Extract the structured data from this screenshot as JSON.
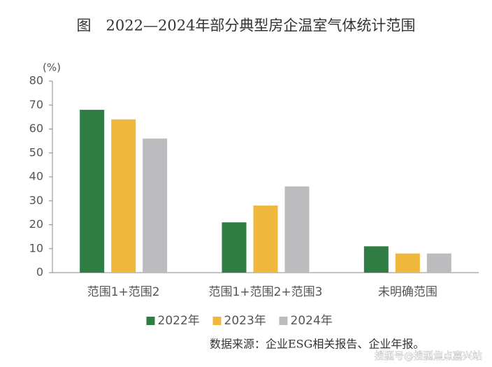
{
  "chart_data": {
    "type": "bar",
    "title": "图　2022—2024年部分典型房企温室气体统计范围",
    "y_unit": "(%)",
    "categories": [
      "范围1+范围2",
      "范围1+范围2+范围3",
      "未明确范围"
    ],
    "series": [
      {
        "name": "2022年",
        "color": "#2f7d43",
        "values": [
          68,
          21,
          11
        ]
      },
      {
        "name": "2023年",
        "color": "#efb83c",
        "values": [
          64,
          28,
          8
        ]
      },
      {
        "name": "2024年",
        "color": "#bcbcbf",
        "values": [
          56,
          36,
          8
        ]
      }
    ],
    "ylim": [
      0,
      80
    ],
    "yticks": [
      0,
      10,
      20,
      30,
      40,
      50,
      60,
      70,
      80
    ],
    "grid": false,
    "legend": "bottom",
    "source": "数据来源：企业ESG相关报告、企业年报。",
    "watermark": "搜狐号@搜狐焦点嘉兴站"
  }
}
